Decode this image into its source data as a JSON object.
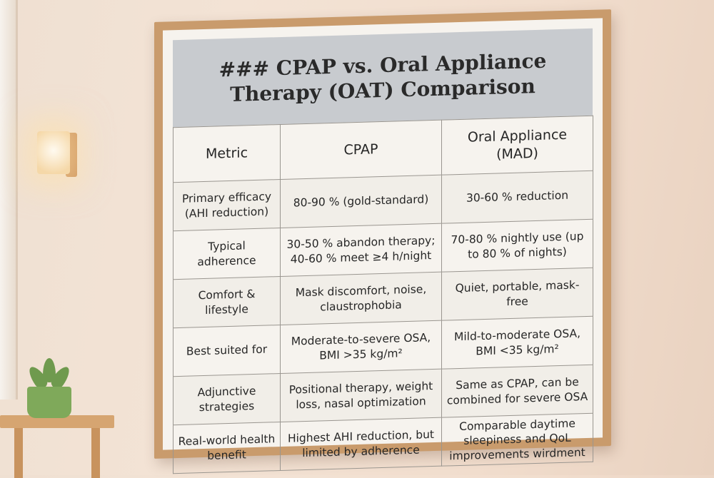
{
  "title": "### CPAP vs. Oral Appliance Therapy (OAT) Comparison",
  "table": {
    "header": [
      "Metric",
      "CPAP",
      "Oral Appliance (MAD)"
    ],
    "rows": [
      [
        "Primary efficacy (AHI reduction)",
        "80-90 % (gold-standard)",
        "30-60 % reduction"
      ],
      [
        "Typical adherence",
        "30-50 % abandon therapy; 40-60 % meet ≥4 h/night",
        "70-80 % nightly use (up to 80 % of nights)"
      ],
      [
        "Comfort & lifestyle",
        "Mask discomfort, noise, claustrophobia",
        "Quiet, portable, mask-free"
      ],
      [
        "Best suited for",
        "Moderate-to-severe OSA, BMI >35 kg/m²",
        "Mild-to-moderate OSA, BMI <35 kg/m²"
      ],
      [
        "Adjunctive strategies",
        "Positional therapy, weight loss, nasal optimization",
        "Same as CPAP, can be combined for severe OSA"
      ],
      [
        "Real-world health benefit",
        "Highest AHI reduction, but limited by adherence",
        "Comparable daytime sleepiness and QoL improvements wirdment"
      ]
    ]
  }
}
